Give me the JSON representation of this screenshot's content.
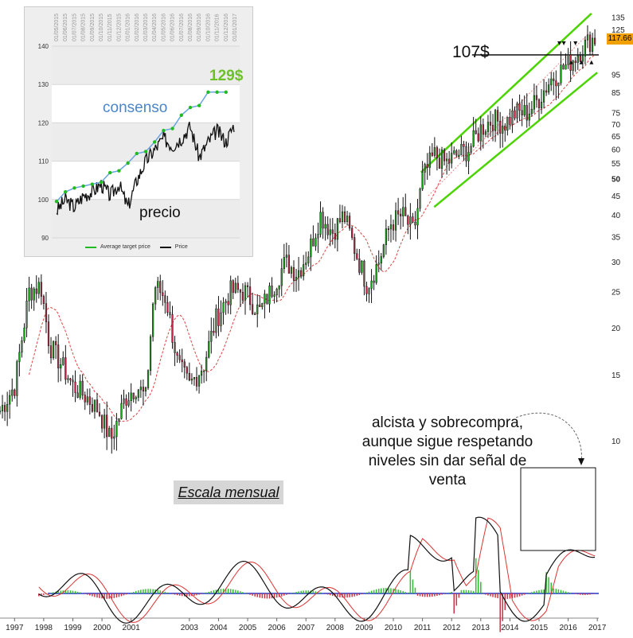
{
  "chart_data": [
    {
      "type": "candlestick",
      "title": "",
      "scale": "log",
      "x_ticks": [
        "1997",
        "1998",
        "1999",
        "2000",
        "2001",
        "2003",
        "2004",
        "2005",
        "2006",
        "2007",
        "2008",
        "2009",
        "2010",
        "2011",
        "2012",
        "2013",
        "2014",
        "2015",
        "2016",
        "2017"
      ],
      "y_ticks": [
        10,
        15,
        20,
        25,
        30,
        35,
        40,
        45,
        50,
        55,
        60,
        65,
        70,
        75,
        85,
        95,
        125,
        135
      ],
      "ylim": [
        8.5,
        140
      ],
      "last_price": "117.66",
      "approx_monthly_close": [
        {
          "x": 1996.5,
          "y": 12
        },
        {
          "x": 1997.0,
          "y": 14
        },
        {
          "x": 1997.5,
          "y": 25
        },
        {
          "x": 1997.9,
          "y": 26
        },
        {
          "x": 1998.2,
          "y": 18
        },
        {
          "x": 1998.6,
          "y": 16
        },
        {
          "x": 1999.0,
          "y": 14
        },
        {
          "x": 1999.5,
          "y": 13
        },
        {
          "x": 1999.9,
          "y": 12
        },
        {
          "x": 2000.3,
          "y": 10
        },
        {
          "x": 2000.8,
          "y": 13
        },
        {
          "x": 2001.2,
          "y": 14
        },
        {
          "x": 2001.5,
          "y": 13
        },
        {
          "x": 2001.8,
          "y": 26
        },
        {
          "x": 2002.2,
          "y": 24
        },
        {
          "x": 2002.6,
          "y": 16
        },
        {
          "x": 2003.0,
          "y": 14
        },
        {
          "x": 2003.5,
          "y": 16
        },
        {
          "x": 2003.9,
          "y": 21
        },
        {
          "x": 2004.4,
          "y": 25
        },
        {
          "x": 2004.9,
          "y": 25
        },
        {
          "x": 2005.4,
          "y": 22
        },
        {
          "x": 2005.9,
          "y": 26
        },
        {
          "x": 2006.3,
          "y": 30
        },
        {
          "x": 2006.7,
          "y": 28
        },
        {
          "x": 2007.1,
          "y": 32
        },
        {
          "x": 2007.5,
          "y": 40
        },
        {
          "x": 2007.9,
          "y": 36
        },
        {
          "x": 2008.3,
          "y": 40
        },
        {
          "x": 2008.7,
          "y": 32
        },
        {
          "x": 2009.1,
          "y": 26
        },
        {
          "x": 2009.5,
          "y": 30
        },
        {
          "x": 2009.9,
          "y": 38
        },
        {
          "x": 2010.3,
          "y": 40
        },
        {
          "x": 2010.7,
          "y": 36
        },
        {
          "x": 2011.0,
          "y": 50
        },
        {
          "x": 2011.4,
          "y": 58
        },
        {
          "x": 2011.8,
          "y": 55
        },
        {
          "x": 2012.2,
          "y": 58
        },
        {
          "x": 2012.6,
          "y": 60
        },
        {
          "x": 2013.0,
          "y": 68
        },
        {
          "x": 2013.4,
          "y": 72
        },
        {
          "x": 2013.8,
          "y": 70
        },
        {
          "x": 2014.2,
          "y": 75
        },
        {
          "x": 2014.6,
          "y": 75
        },
        {
          "x": 2015.0,
          "y": 82
        },
        {
          "x": 2015.4,
          "y": 92
        },
        {
          "x": 2015.8,
          "y": 98
        },
        {
          "x": 2016.2,
          "y": 105
        },
        {
          "x": 2016.5,
          "y": 112
        },
        {
          "x": 2016.8,
          "y": 118
        }
      ],
      "channel_color": "#4cd400",
      "annotations": [
        "107$",
        "alcista y sobrecompra, aunque sigue respetando niveles sin dar señal de venta",
        "Escala mensual"
      ]
    },
    {
      "type": "line",
      "title": "",
      "x": [
        "01/05/2015",
        "01/06/2015",
        "01/07/2015",
        "01/08/2015",
        "01/09/2015",
        "01/10/2015",
        "01/11/2015",
        "01/12/2015",
        "01/01/2016",
        "01/02/2016",
        "01/03/2016",
        "01/04/2016",
        "01/05/2016",
        "01/06/2016",
        "01/07/2016",
        "01/08/2016",
        "01/09/2016",
        "01/10/2016",
        "01/11/2016",
        "01/12/2016",
        "01/01/2017"
      ],
      "y_ticks": [
        90,
        100,
        110,
        120,
        130,
        140
      ],
      "ylim": [
        90,
        140
      ],
      "series": [
        {
          "name": "Average target price",
          "color": "#22bb22",
          "values": [
            99.5,
            102,
            103,
            103.5,
            104,
            104.5,
            107,
            107.5,
            109.5,
            112,
            112.5,
            115,
            118,
            118.5,
            122,
            124,
            124.5,
            128,
            128,
            128,
            null
          ]
        },
        {
          "name": "Price",
          "color": "#111111",
          "values": [
            97,
            100,
            98,
            101,
            102,
            104,
            101,
            104,
            98,
            105,
            110,
            113,
            116,
            114,
            116,
            119,
            111,
            115,
            118,
            115,
            120
          ]
        }
      ],
      "annotations": [
        "consenso",
        "129$",
        "precio"
      ]
    }
  ]
}
